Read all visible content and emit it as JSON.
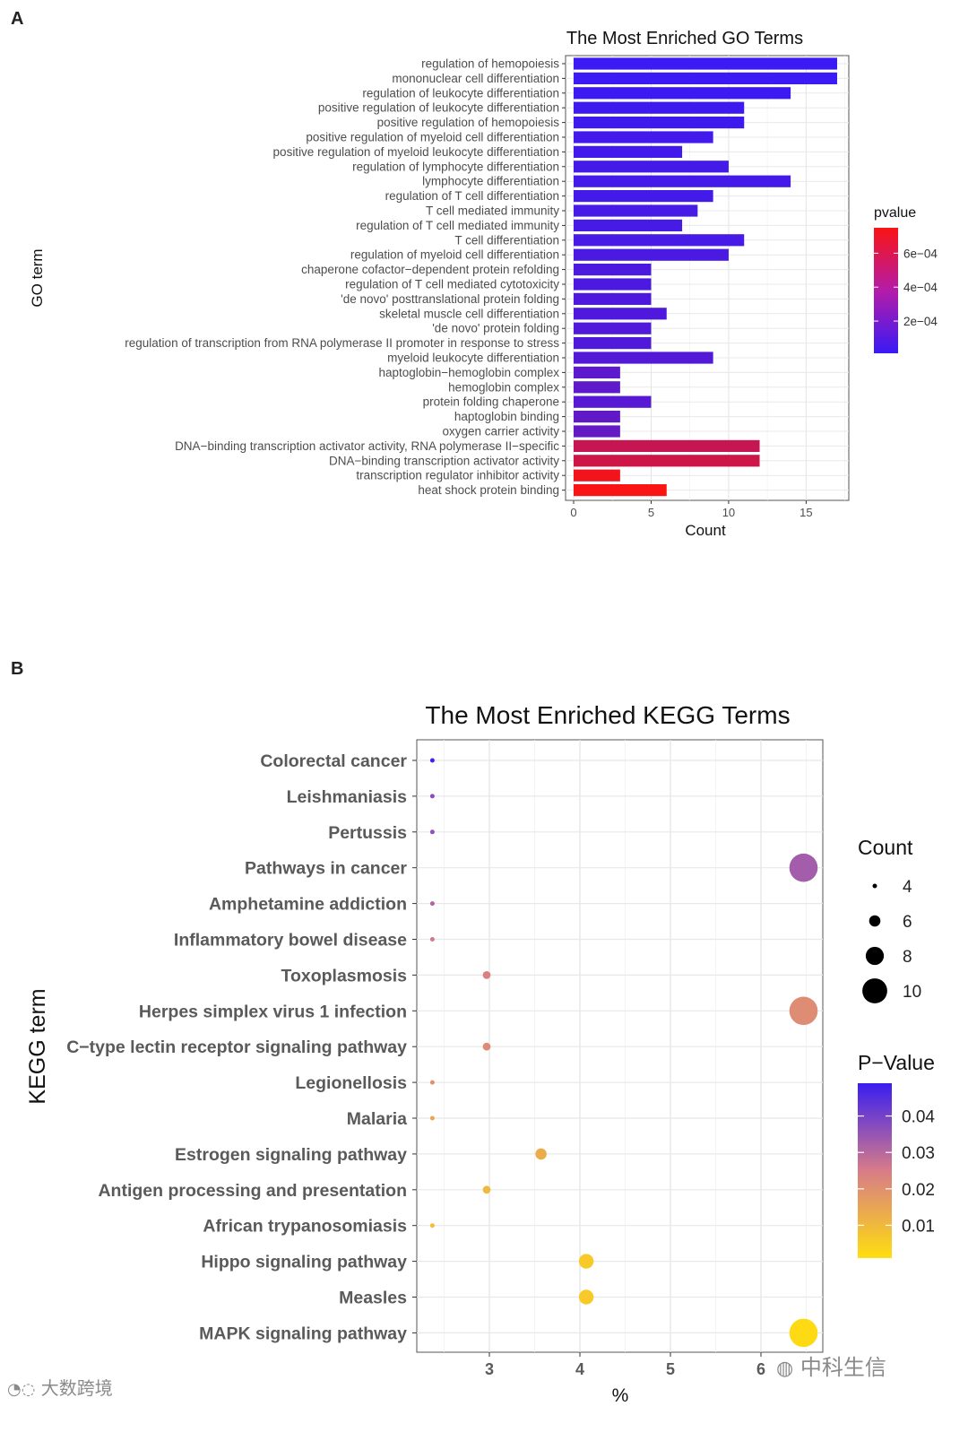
{
  "panel_a_label": "A",
  "panel_b_label": "B",
  "watermarks": {
    "left": "大数跨境",
    "right": "中科生信"
  },
  "chart_data": [
    {
      "type": "bar",
      "orientation": "horizontal",
      "title": "The Most Enriched GO Terms",
      "xlabel": "Count",
      "ylabel": "GO term",
      "xlim": [
        0,
        17.8
      ],
      "xticks": [
        0,
        5,
        10,
        15
      ],
      "grid": true,
      "categories": [
        "regulation of hemopoiesis",
        "mononuclear cell differentiation",
        "regulation of leukocyte differentiation",
        "positive regulation of leukocyte differentiation",
        "positive regulation of hemopoiesis",
        "positive regulation of myeloid cell differentiation",
        "positive regulation of myeloid leukocyte differentiation",
        "regulation of lymphocyte differentiation",
        "lymphocyte differentiation",
        "regulation of T cell differentiation",
        "T cell mediated immunity",
        "regulation of T cell mediated immunity",
        "T cell differentiation",
        "regulation of myeloid cell differentiation",
        "chaperone cofactor−dependent protein refolding",
        "regulation of T cell mediated cytotoxicity",
        "'de novo' posttranslational protein folding",
        "skeletal muscle cell differentiation",
        "'de novo' protein folding",
        "regulation of transcription from RNA polymerase II promoter in response to stress",
        "myeloid leukocyte differentiation",
        "haptoglobin−hemoglobin complex",
        "hemoglobin complex",
        "protein folding chaperone",
        "haptoglobin binding",
        "oxygen carrier activity",
        "DNA−binding transcription activator activity, RNA polymerase II−specific",
        "DNA−binding transcription activator activity",
        "transcription regulator inhibitor activity",
        "heat shock protein binding"
      ],
      "values": [
        17,
        17,
        14,
        11,
        11,
        9,
        7,
        10,
        14,
        9,
        8,
        7,
        11,
        10,
        5,
        5,
        5,
        6,
        5,
        5,
        9,
        3,
        3,
        5,
        3,
        3,
        12,
        12,
        3,
        6
      ],
      "pvalues": [
        1e-05,
        1e-05,
        2e-05,
        3e-05,
        3e-05,
        4e-05,
        4e-05,
        5e-05,
        5e-05,
        5e-05,
        6e-05,
        6e-05,
        6e-05,
        7e-05,
        8e-05,
        8e-05,
        9e-05,
        9e-05,
        0.0001,
        0.0001,
        0.00011,
        0.00014,
        0.00015,
        0.00012,
        0.00016,
        0.00017,
        0.00055,
        0.00058,
        0.00072,
        0.00075
      ],
      "legend": {
        "title": "pvalue",
        "placement": "right",
        "ticks": [
          "6e−04",
          "4e−04",
          "2e−04"
        ],
        "tick_values": [
          0.0006,
          0.0004,
          0.0002
        ],
        "range": [
          1e-05,
          0.00075
        ],
        "low_color": "#3a1af5",
        "high_color": "#fa1414"
      }
    },
    {
      "type": "scatter",
      "title": "The Most Enriched KEGG Terms",
      "xlabel": "%",
      "ylabel": "KEGG term",
      "xlim": [
        2.2,
        6.7
      ],
      "xticks": [
        3,
        4,
        5,
        6
      ],
      "grid": true,
      "categories": [
        "Colorectal cancer",
        "Leishmaniasis",
        "Pertussis",
        "Pathways in cancer",
        "Amphetamine addiction",
        "Inflammatory bowel disease",
        "Toxoplasmosis",
        "Herpes simplex virus 1 infection",
        "C−type lectin receptor signaling pathway",
        "Legionellosis",
        "Malaria",
        "Estrogen signaling pathway",
        "Antigen processing and presentation",
        "African trypanosomiasis",
        "Hippo signaling pathway",
        "Measles",
        "MAPK signaling pathway"
      ],
      "x": [
        2.4,
        2.4,
        2.4,
        6.5,
        2.4,
        2.4,
        3.0,
        6.5,
        3.0,
        2.4,
        2.4,
        3.6,
        3.0,
        2.4,
        4.1,
        4.1,
        6.5
      ],
      "count": [
        4,
        4,
        4,
        11,
        4,
        4,
        5,
        11,
        5,
        4,
        4,
        6,
        5,
        4,
        7,
        7,
        11
      ],
      "pvalue": [
        0.048,
        0.037,
        0.036,
        0.033,
        0.031,
        0.026,
        0.024,
        0.021,
        0.021,
        0.02,
        0.015,
        0.013,
        0.01,
        0.009,
        0.006,
        0.006,
        0.002
      ],
      "size_legend": {
        "title": "Count",
        "values": [
          4,
          6,
          8,
          10
        ]
      },
      "color_legend": {
        "title": "P−Value",
        "ticks": [
          "0.04",
          "0.03",
          "0.02",
          "0.01"
        ],
        "tick_values": [
          0.04,
          0.03,
          0.02,
          0.01
        ],
        "range": [
          0.001,
          0.049
        ],
        "low_color": "#ffde0f",
        "mid_color": "#d77c88",
        "high_color": "#3a1ef0"
      }
    }
  ]
}
